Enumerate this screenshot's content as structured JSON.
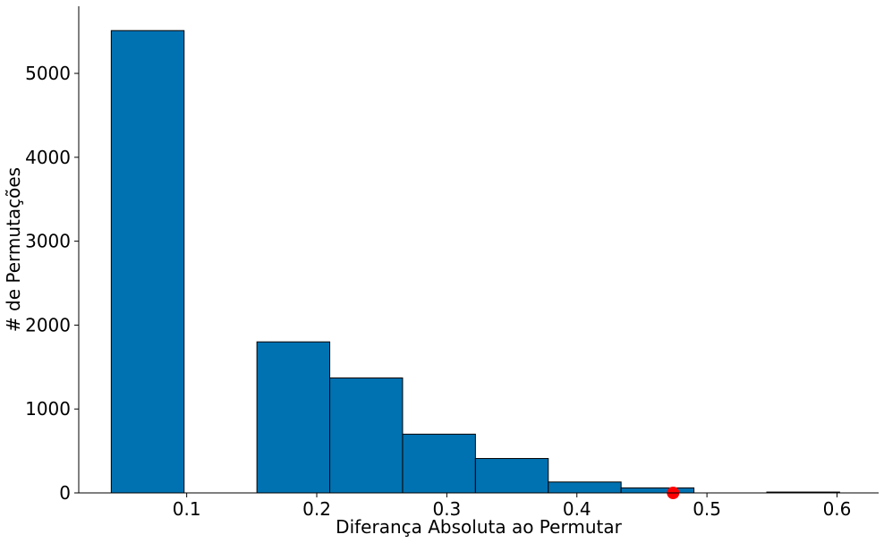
{
  "chart_data": {
    "type": "bar",
    "subtype": "histogram",
    "xlabel": "Diferança Absoluta ao Permutar",
    "ylabel": "# de Permutações",
    "xlim": [
      0.017,
      0.632
    ],
    "ylim": [
      0,
      5800
    ],
    "xticks": [
      0.1,
      0.2,
      0.3,
      0.4,
      0.5,
      0.6
    ],
    "xtick_labels": [
      "0.1",
      "0.2",
      "0.3",
      "0.4",
      "0.5",
      "0.6"
    ],
    "yticks": [
      0,
      1000,
      2000,
      3000,
      4000,
      5000
    ],
    "ytick_labels": [
      "0",
      "1000",
      "2000",
      "3000",
      "4000",
      "5000"
    ],
    "bins": [
      {
        "x0": 0.042,
        "x1": 0.098,
        "count": 5510
      },
      {
        "x0": 0.098,
        "x1": 0.154,
        "count": 0
      },
      {
        "x0": 0.154,
        "x1": 0.21,
        "count": 1800
      },
      {
        "x0": 0.21,
        "x1": 0.266,
        "count": 1370
      },
      {
        "x0": 0.266,
        "x1": 0.322,
        "count": 700
      },
      {
        "x0": 0.322,
        "x1": 0.378,
        "count": 410
      },
      {
        "x0": 0.378,
        "x1": 0.434,
        "count": 130
      },
      {
        "x0": 0.434,
        "x1": 0.49,
        "count": 60
      },
      {
        "x0": 0.49,
        "x1": 0.546,
        "count": 0
      },
      {
        "x0": 0.546,
        "x1": 0.602,
        "count": 10
      }
    ],
    "marker": {
      "x": 0.474,
      "y": 0,
      "color": "#ff0000"
    },
    "bar_color": "#0072b2",
    "edge_color": "#000000",
    "grid": false,
    "legend": "none"
  }
}
